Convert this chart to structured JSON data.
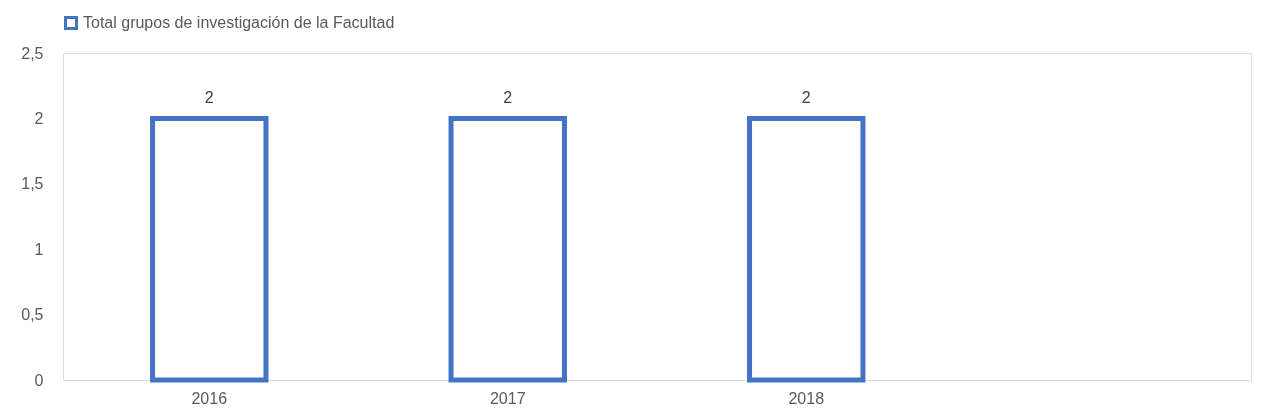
{
  "chart_data": {
    "type": "bar",
    "categories": [
      "2016",
      "2017",
      "2018",
      null
    ],
    "series": [
      {
        "name": "Total grupos de investigación de la Facultad",
        "color": "#4472c4",
        "values": [
          2,
          2,
          2,
          null
        ]
      }
    ],
    "ylim": [
      0,
      2.5
    ],
    "yticks": [
      0,
      {
        "value": 0.5,
        "label": "0,5"
      },
      1,
      {
        "value": 1.5,
        "label": "1,5"
      },
      2,
      {
        "value": 2.5,
        "label": "2,5"
      }
    ],
    "data_labels": true,
    "grid": false,
    "legend": "top"
  }
}
